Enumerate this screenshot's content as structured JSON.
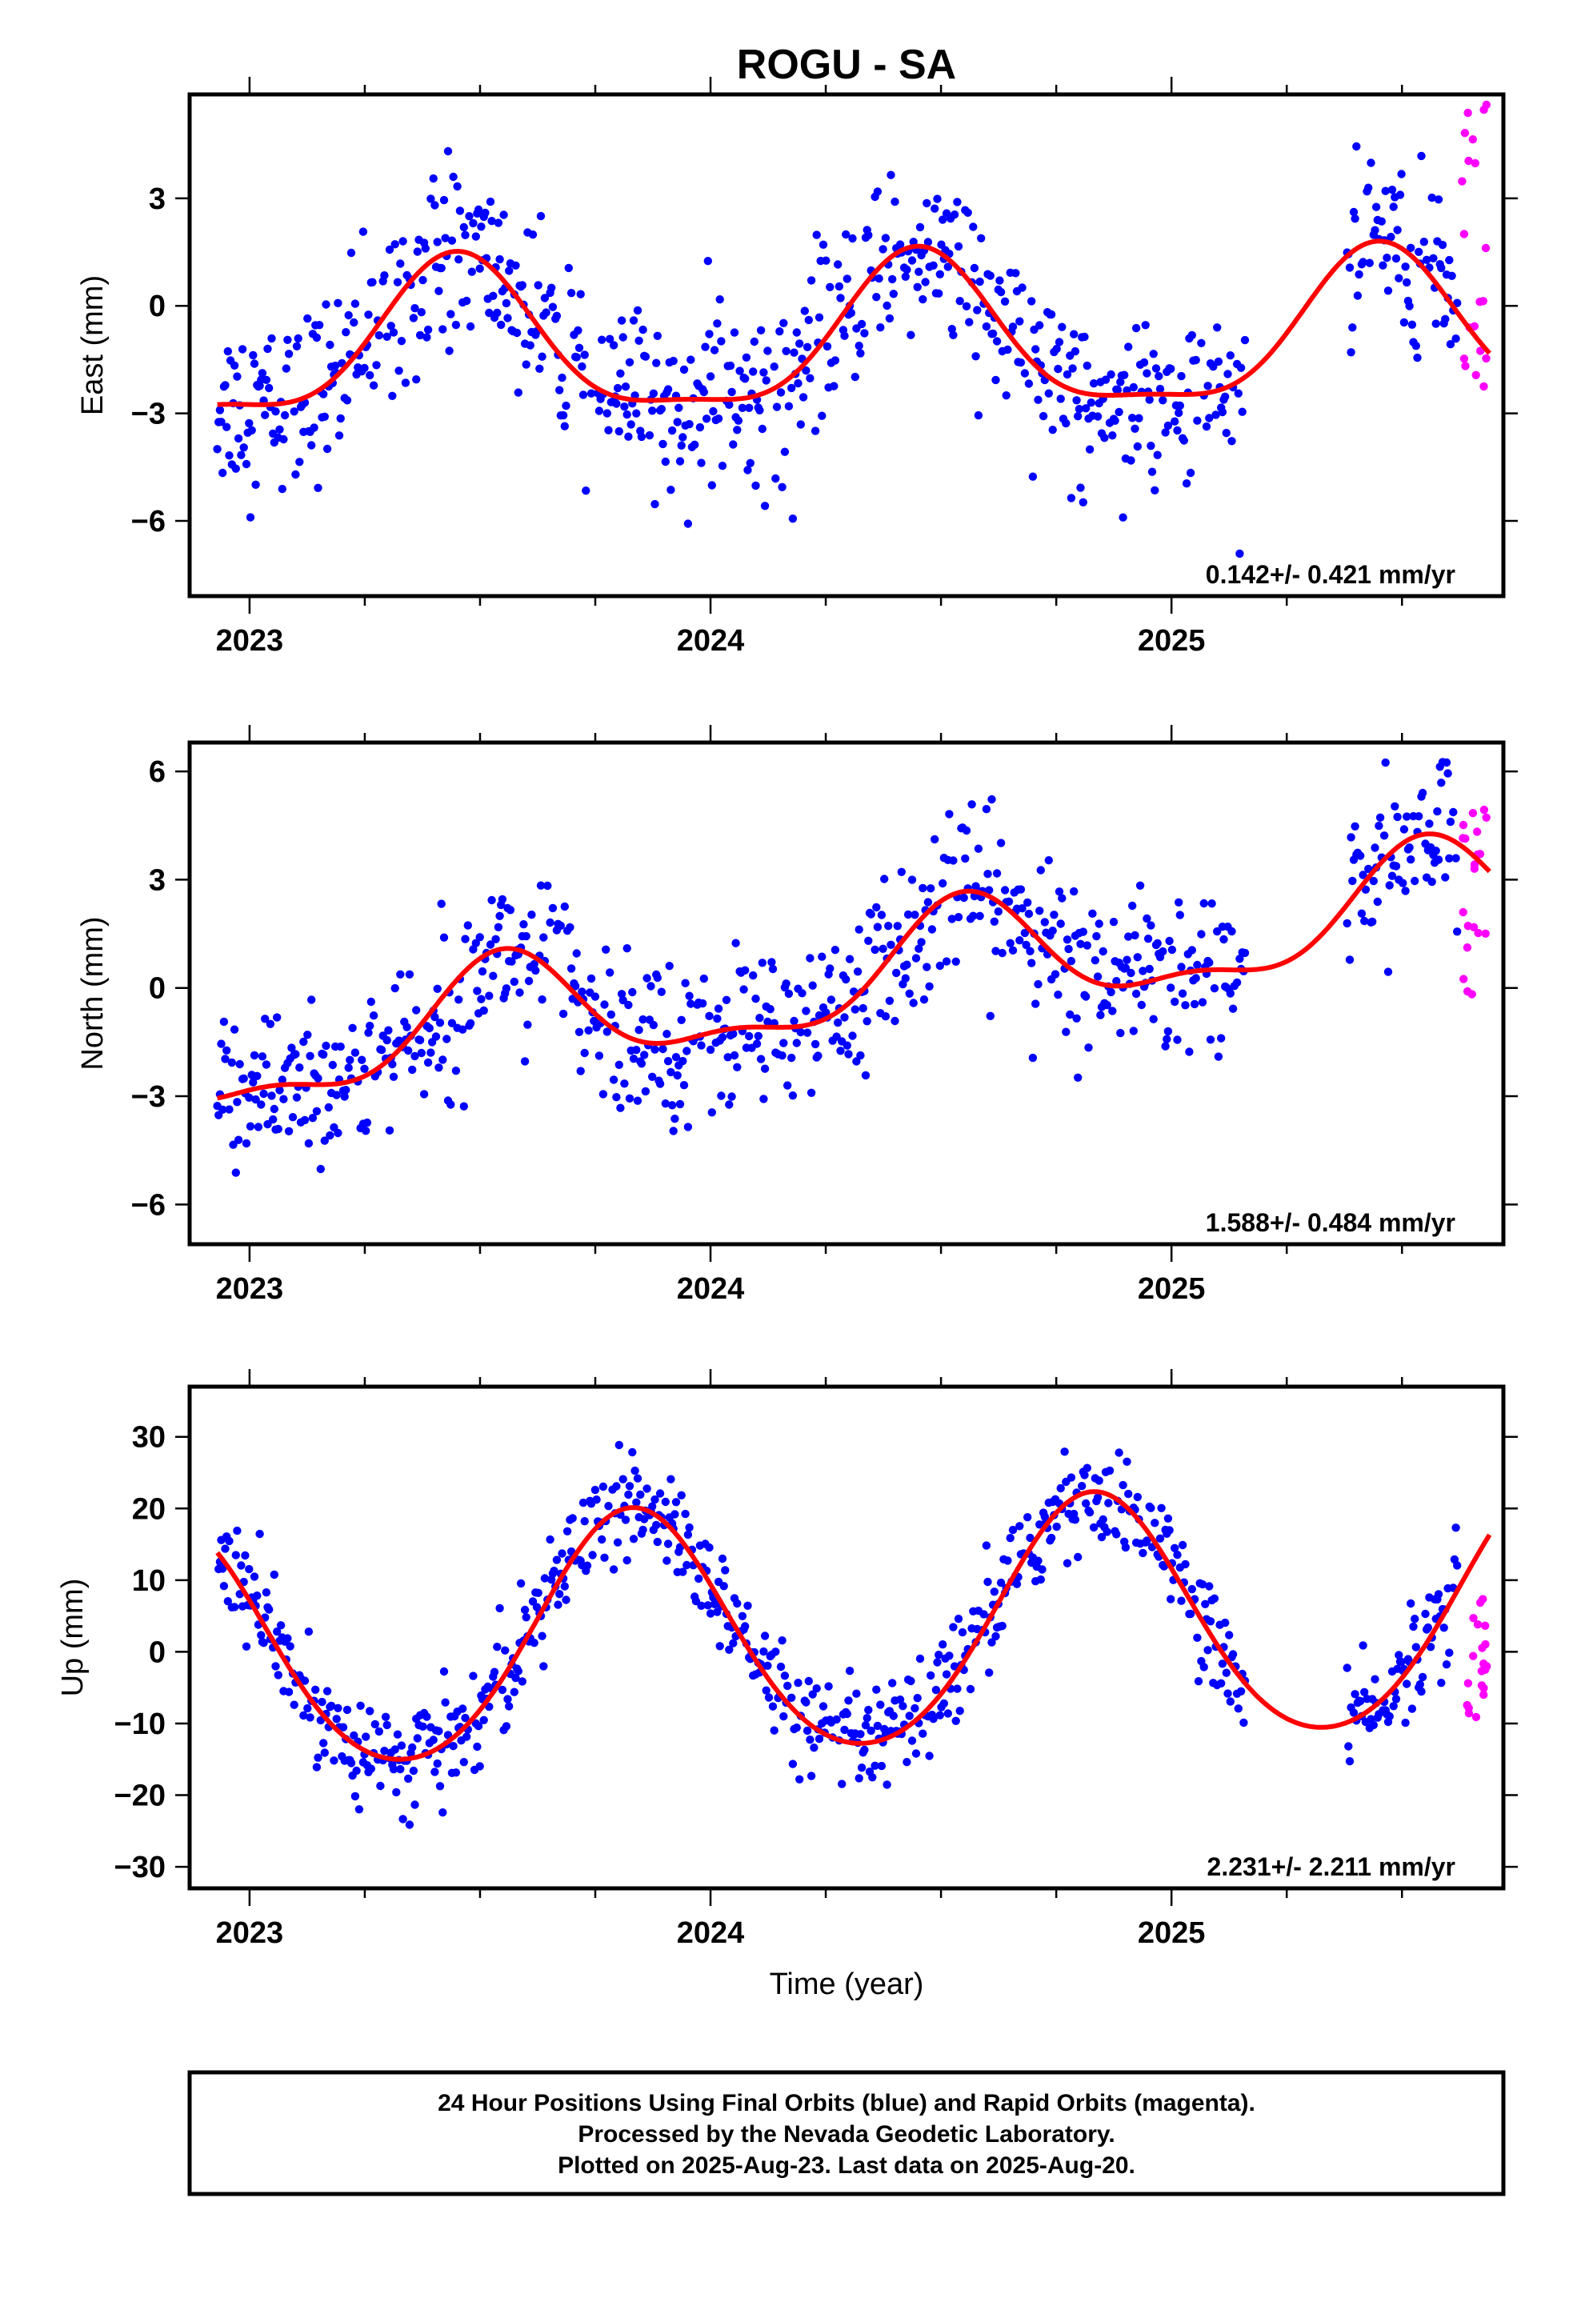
{
  "title": "ROGU - SA",
  "xlabel": "Time (year)",
  "footnote": {
    "line1": "24 Hour Positions Using Final Orbits (blue) and Rapid Orbits (magenta).",
    "line2": "Processed by the Nevada Geodetic Laboratory.",
    "line3": "Plotted on 2025-Aug-23. Last data on 2025-Aug-20."
  },
  "colors": {
    "final": "#0000ff",
    "rapid": "#ff00ff",
    "model": "#ff0000",
    "frame": "#000000"
  },
  "chart_data": [
    {
      "type": "scatter",
      "component": "east",
      "ylabel": "East (mm)",
      "xlim": [
        2022.87,
        2025.72
      ],
      "ylim": [
        -8.1,
        5.9
      ],
      "x_ticks": [
        2023,
        2024,
        2025
      ],
      "y_ticks": [
        -6,
        -3,
        0,
        3
      ],
      "y_tick_labels": [
        "−6",
        "−3",
        "0",
        "3"
      ],
      "rate_label": "0.142+/- 0.421 mm/yr",
      "model": {
        "mean": -1.1,
        "amp": 2.1,
        "peak": 2023.45,
        "amp2": 0.6,
        "peak2": 2023.45,
        "trend": 0.142,
        "ref": 2024.0,
        "gap": [
          2025.16,
          2025.38
        ]
      },
      "scatter_spread": 1.2,
      "rapid_range": [
        -2.6,
        5.7
      ]
    },
    {
      "type": "scatter",
      "component": "north",
      "ylabel": "North (mm)",
      "xlim": [
        2022.87,
        2025.72
      ],
      "ylim": [
        -7.1,
        6.8
      ],
      "x_ticks": [
        2023,
        2024,
        2025
      ],
      "y_ticks": [
        -6,
        -3,
        0,
        3,
        6
      ],
      "y_tick_labels": [
        "−6",
        "−3",
        "0",
        "3",
        "6"
      ],
      "rate_label": "1.588+/- 0.484 mm/yr",
      "model": {
        "mean": -0.3,
        "amp": 1.5,
        "peak": 2023.55,
        "amp2": 0.6,
        "peak2": 2023.55,
        "trend": 1.588,
        "ref": 2024.0,
        "gap": [
          2025.16,
          2025.38
        ]
      },
      "scatter_spread": 1.1,
      "rapid_range": [
        -0.6,
        5.3
      ]
    },
    {
      "type": "scatter",
      "component": "up",
      "ylabel": "Up (mm)",
      "xlim": [
        2022.87,
        2025.72
      ],
      "ylim": [
        -33,
        37
      ],
      "x_ticks": [
        2023,
        2024,
        2025
      ],
      "y_ticks": [
        -30,
        -20,
        -10,
        0,
        10,
        20,
        30
      ],
      "y_tick_labels": [
        "−30",
        "−20",
        "−10",
        "0",
        "10",
        "20",
        "30"
      ],
      "rate_label": "2.231+/- 2.211 mm/yr",
      "model": {
        "mean": 2.0,
        "amp": 17.0,
        "peak": 2023.83,
        "amp2": 1.5,
        "peak2": 2023.83,
        "trend": 2.231,
        "ref": 2024.0,
        "gap": [
          2025.16,
          2025.38
        ]
      },
      "scatter_spread": 3.5,
      "rapid_range": [
        -9.5,
        7.5
      ]
    }
  ]
}
